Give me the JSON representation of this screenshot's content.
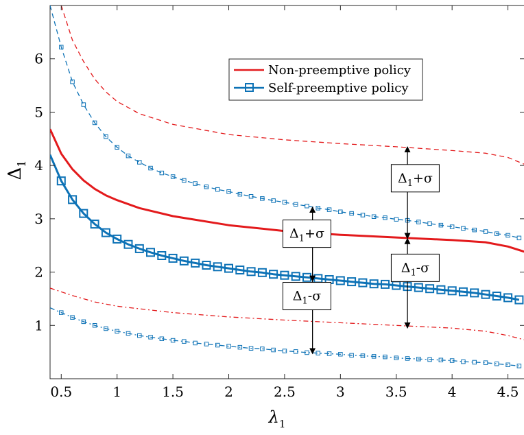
{
  "chart_data": {
    "type": "line",
    "xlabel": "λ",
    "xlabel_sub": "1",
    "ylabel": "Δ",
    "ylabel_sub": "1",
    "xlim": [
      0.4,
      4.65
    ],
    "ylim": [
      0,
      7
    ],
    "xticks": [
      0.5,
      1,
      1.5,
      2,
      2.5,
      3,
      3.5,
      4,
      4.5
    ],
    "yticks": [
      1,
      2,
      3,
      4,
      5,
      6
    ],
    "grid": false,
    "legend": {
      "placement": "top-center",
      "entries": [
        {
          "label": "Non-preemptive policy",
          "color": "#e31a1c",
          "marker": "none"
        },
        {
          "label": "Self-preemptive policy",
          "color": "#0d72b6",
          "marker": "square"
        }
      ]
    },
    "series": [
      {
        "key": "non_mean",
        "style": "solid",
        "color": "#e31a1c",
        "marker": "none",
        "x": [
          0.4,
          0.5,
          0.6,
          0.7,
          0.8,
          0.9,
          1.0,
          1.2,
          1.5,
          2.0,
          2.5,
          3.0,
          3.5,
          4.0,
          4.3,
          4.5,
          4.65
        ],
        "y": [
          4.68,
          4.22,
          3.93,
          3.72,
          3.56,
          3.44,
          3.35,
          3.2,
          3.05,
          2.88,
          2.77,
          2.7,
          2.65,
          2.6,
          2.56,
          2.48,
          2.38
        ]
      },
      {
        "key": "non_upper",
        "style": "dashed",
        "color": "#e31a1c",
        "marker": "none",
        "x": [
          0.5,
          0.6,
          0.7,
          0.8,
          0.9,
          1.0,
          1.2,
          1.5,
          2.0,
          2.5,
          3.0,
          3.5,
          4.0,
          4.3,
          4.5,
          4.65
        ],
        "y": [
          7.0,
          6.35,
          5.95,
          5.62,
          5.38,
          5.2,
          4.97,
          4.77,
          4.58,
          4.48,
          4.41,
          4.35,
          4.28,
          4.23,
          4.15,
          4.02
        ]
      },
      {
        "key": "non_lower",
        "style": "dashdot",
        "color": "#e31a1c",
        "marker": "none",
        "x": [
          0.4,
          0.6,
          0.8,
          1.0,
          1.5,
          2.0,
          2.5,
          3.0,
          3.5,
          4.0,
          4.3,
          4.5,
          4.65
        ],
        "y": [
          1.7,
          1.56,
          1.44,
          1.36,
          1.24,
          1.16,
          1.1,
          1.05,
          1.0,
          0.95,
          0.89,
          0.81,
          0.73
        ]
      },
      {
        "key": "self_mean",
        "style": "solid",
        "color": "#0d72b6",
        "marker": "square",
        "x": [
          0.4,
          0.5,
          0.6,
          0.7,
          0.8,
          0.9,
          1.0,
          1.1,
          1.2,
          1.3,
          1.4,
          1.5,
          1.6,
          1.7,
          1.8,
          1.9,
          2.0,
          2.1,
          2.2,
          2.3,
          2.4,
          2.5,
          2.6,
          2.7,
          2.8,
          2.9,
          3.0,
          3.1,
          3.2,
          3.3,
          3.4,
          3.5,
          3.6,
          3.7,
          3.8,
          3.9,
          4.0,
          4.1,
          4.2,
          4.3,
          4.4,
          4.5,
          4.6
        ],
        "y": [
          4.2,
          3.71,
          3.36,
          3.1,
          2.9,
          2.74,
          2.62,
          2.52,
          2.44,
          2.37,
          2.31,
          2.26,
          2.21,
          2.17,
          2.13,
          2.1,
          2.07,
          2.04,
          2.01,
          1.99,
          1.96,
          1.94,
          1.92,
          1.9,
          1.88,
          1.86,
          1.84,
          1.82,
          1.8,
          1.78,
          1.77,
          1.75,
          1.73,
          1.71,
          1.69,
          1.67,
          1.65,
          1.63,
          1.61,
          1.58,
          1.55,
          1.52,
          1.48
        ]
      },
      {
        "key": "self_upper",
        "style": "dashed",
        "color": "#0d72b6",
        "marker": "square",
        "x": [
          0.4,
          0.5,
          0.6,
          0.7,
          0.8,
          0.9,
          1.0,
          1.1,
          1.2,
          1.3,
          1.4,
          1.5,
          1.6,
          1.7,
          1.8,
          1.9,
          2.0,
          2.1,
          2.2,
          2.3,
          2.4,
          2.5,
          2.6,
          2.7,
          2.8,
          2.9,
          3.0,
          3.1,
          3.2,
          3.3,
          3.4,
          3.5,
          3.6,
          3.7,
          3.8,
          3.9,
          4.0,
          4.1,
          4.2,
          4.3,
          4.4,
          4.5,
          4.6
        ],
        "y": [
          7.0,
          6.22,
          5.57,
          5.14,
          4.8,
          4.54,
          4.34,
          4.18,
          4.06,
          3.95,
          3.86,
          3.79,
          3.72,
          3.66,
          3.6,
          3.55,
          3.51,
          3.46,
          3.42,
          3.38,
          3.34,
          3.31,
          3.27,
          3.24,
          3.2,
          3.17,
          3.13,
          3.1,
          3.07,
          3.04,
          3.02,
          2.99,
          2.97,
          2.94,
          2.91,
          2.88,
          2.85,
          2.82,
          2.79,
          2.76,
          2.72,
          2.69,
          2.64
        ]
      },
      {
        "key": "self_lower",
        "style": "dashdot",
        "color": "#0d72b6",
        "marker": "square",
        "x": [
          0.4,
          0.5,
          0.6,
          0.7,
          0.8,
          0.9,
          1.0,
          1.1,
          1.2,
          1.3,
          1.4,
          1.5,
          1.6,
          1.7,
          1.8,
          1.9,
          2.0,
          2.1,
          2.2,
          2.3,
          2.4,
          2.5,
          2.6,
          2.7,
          2.8,
          2.9,
          3.0,
          3.1,
          3.2,
          3.3,
          3.4,
          3.5,
          3.6,
          3.7,
          3.8,
          3.9,
          4.0,
          4.1,
          4.2,
          4.3,
          4.4,
          4.5,
          4.6
        ],
        "y": [
          1.33,
          1.24,
          1.15,
          1.07,
          1.0,
          0.94,
          0.89,
          0.85,
          0.81,
          0.78,
          0.75,
          0.72,
          0.7,
          0.67,
          0.65,
          0.63,
          0.61,
          0.59,
          0.57,
          0.56,
          0.54,
          0.52,
          0.51,
          0.49,
          0.48,
          0.47,
          0.46,
          0.44,
          0.43,
          0.42,
          0.41,
          0.39,
          0.38,
          0.37,
          0.36,
          0.35,
          0.34,
          0.32,
          0.31,
          0.3,
          0.28,
          0.26,
          0.24
        ]
      }
    ],
    "annotations": [
      {
        "key": "ann1",
        "base": "Δ",
        "sub": "1",
        "tail": "+σ",
        "arrow_x": 2.75,
        "arrow_y_from": 1.83,
        "arrow_y_to": 3.22,
        "label_x": 2.7,
        "label_y": 2.72
      },
      {
        "key": "ann2",
        "base": "Δ",
        "sub": "1",
        "tail": "-σ",
        "arrow_x": 2.75,
        "arrow_y_from": 0.47,
        "arrow_y_to": 1.83,
        "label_x": 2.7,
        "label_y": 1.55
      },
      {
        "key": "ann3",
        "base": "Δ",
        "sub": "1",
        "tail": "+σ",
        "arrow_x": 3.6,
        "arrow_y_from": 2.63,
        "arrow_y_to": 4.35,
        "label_x": 3.67,
        "label_y": 3.76
      },
      {
        "key": "ann4",
        "base": "Δ",
        "sub": "1",
        "tail": "-σ",
        "arrow_x": 3.6,
        "arrow_y_from": 0.95,
        "arrow_y_to": 2.63,
        "label_x": 3.67,
        "label_y": 2.08
      }
    ]
  }
}
